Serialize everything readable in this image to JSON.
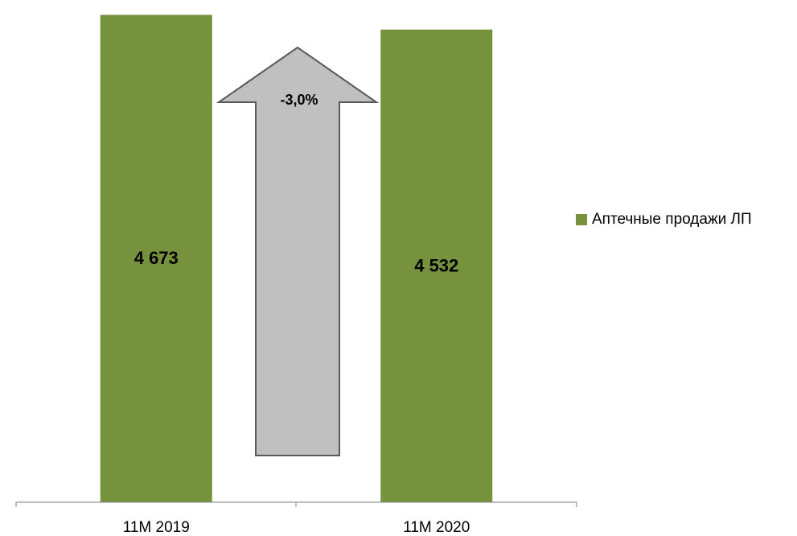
{
  "chart_data": {
    "type": "bar",
    "categories": [
      "11M 2019",
      "11M 2020"
    ],
    "series": [
      {
        "name": "Аптечные продажи ЛП",
        "values": [
          4673,
          4532
        ],
        "color": "#76923c"
      }
    ],
    "data_labels": [
      "4 673",
      "4 532"
    ],
    "annotation": {
      "text": "-3,0%",
      "type": "arrow",
      "color": "#c0c0c0"
    },
    "ylim": [
      0,
      4800
    ],
    "grid": false,
    "legend_position": "right"
  }
}
